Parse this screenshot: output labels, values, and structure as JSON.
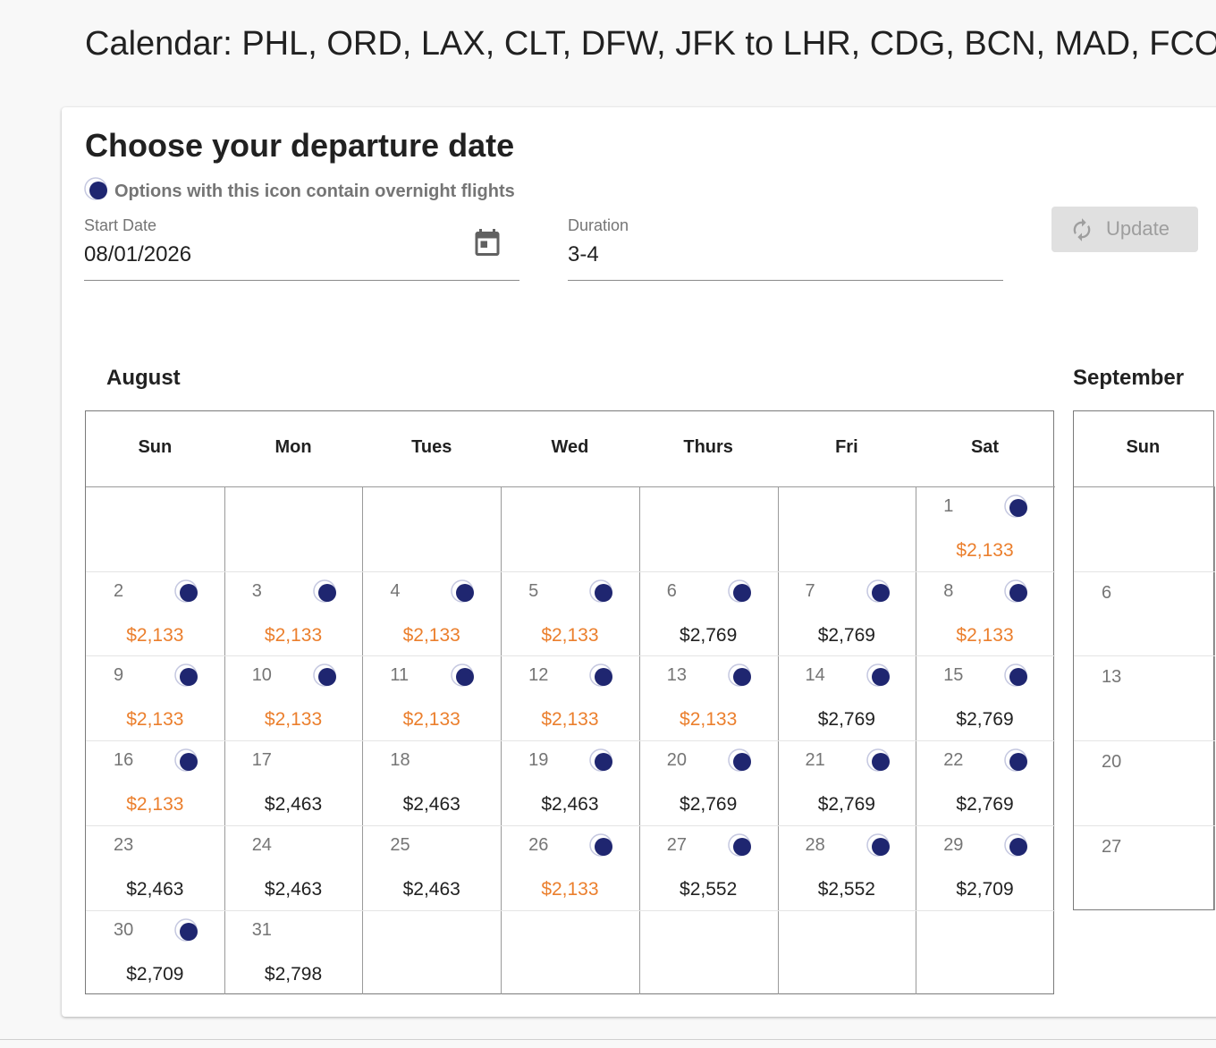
{
  "page_title": "Calendar: PHL, ORD, LAX, CLT, DFW, JFK to LHR, CDG, BCN, MAD, FCO",
  "card": {
    "heading": "Choose your departure date",
    "overnight_note": "Options with this icon contain overnight flights",
    "start_date": {
      "label": "Start Date",
      "value": "08/01/2026"
    },
    "duration": {
      "label": "Duration",
      "value": "3-4"
    },
    "update_button": "Update"
  },
  "months": [
    {
      "name": "August",
      "weekdays": [
        "Sun",
        "Mon",
        "Tues",
        "Wed",
        "Thurs",
        "Fri",
        "Sat"
      ],
      "weeks": [
        [
          null,
          null,
          null,
          null,
          null,
          null,
          {
            "day": "1",
            "price": "$2,133",
            "overnight": true,
            "cheap": true
          }
        ],
        [
          {
            "day": "2",
            "price": "$2,133",
            "overnight": true,
            "cheap": true
          },
          {
            "day": "3",
            "price": "$2,133",
            "overnight": true,
            "cheap": true
          },
          {
            "day": "4",
            "price": "$2,133",
            "overnight": true,
            "cheap": true
          },
          {
            "day": "5",
            "price": "$2,133",
            "overnight": true,
            "cheap": true
          },
          {
            "day": "6",
            "price": "$2,769",
            "overnight": true,
            "cheap": false
          },
          {
            "day": "7",
            "price": "$2,769",
            "overnight": true,
            "cheap": false
          },
          {
            "day": "8",
            "price": "$2,133",
            "overnight": true,
            "cheap": true
          }
        ],
        [
          {
            "day": "9",
            "price": "$2,133",
            "overnight": true,
            "cheap": true
          },
          {
            "day": "10",
            "price": "$2,133",
            "overnight": true,
            "cheap": true
          },
          {
            "day": "11",
            "price": "$2,133",
            "overnight": true,
            "cheap": true
          },
          {
            "day": "12",
            "price": "$2,133",
            "overnight": true,
            "cheap": true
          },
          {
            "day": "13",
            "price": "$2,133",
            "overnight": true,
            "cheap": true
          },
          {
            "day": "14",
            "price": "$2,769",
            "overnight": true,
            "cheap": false
          },
          {
            "day": "15",
            "price": "$2,769",
            "overnight": true,
            "cheap": false
          }
        ],
        [
          {
            "day": "16",
            "price": "$2,133",
            "overnight": true,
            "cheap": true
          },
          {
            "day": "17",
            "price": "$2,463",
            "overnight": false,
            "cheap": false
          },
          {
            "day": "18",
            "price": "$2,463",
            "overnight": false,
            "cheap": false
          },
          {
            "day": "19",
            "price": "$2,463",
            "overnight": true,
            "cheap": false
          },
          {
            "day": "20",
            "price": "$2,769",
            "overnight": true,
            "cheap": false
          },
          {
            "day": "21",
            "price": "$2,769",
            "overnight": true,
            "cheap": false
          },
          {
            "day": "22",
            "price": "$2,769",
            "overnight": true,
            "cheap": false
          }
        ],
        [
          {
            "day": "23",
            "price": "$2,463",
            "overnight": false,
            "cheap": false
          },
          {
            "day": "24",
            "price": "$2,463",
            "overnight": false,
            "cheap": false
          },
          {
            "day": "25",
            "price": "$2,463",
            "overnight": false,
            "cheap": false
          },
          {
            "day": "26",
            "price": "$2,133",
            "overnight": true,
            "cheap": true
          },
          {
            "day": "27",
            "price": "$2,552",
            "overnight": true,
            "cheap": false
          },
          {
            "day": "28",
            "price": "$2,552",
            "overnight": true,
            "cheap": false
          },
          {
            "day": "29",
            "price": "$2,709",
            "overnight": true,
            "cheap": false
          }
        ],
        [
          {
            "day": "30",
            "price": "$2,709",
            "overnight": true,
            "cheap": false
          },
          {
            "day": "31",
            "price": "$2,798",
            "overnight": false,
            "cheap": false
          },
          null,
          null,
          null,
          null,
          null
        ]
      ]
    },
    {
      "name": "September",
      "weekdays": [
        "Sun"
      ],
      "weeks": [
        [
          null
        ],
        [
          {
            "day": "6"
          }
        ],
        [
          {
            "day": "13"
          }
        ],
        [
          {
            "day": "20"
          }
        ],
        [
          {
            "day": "27"
          }
        ]
      ]
    }
  ]
}
